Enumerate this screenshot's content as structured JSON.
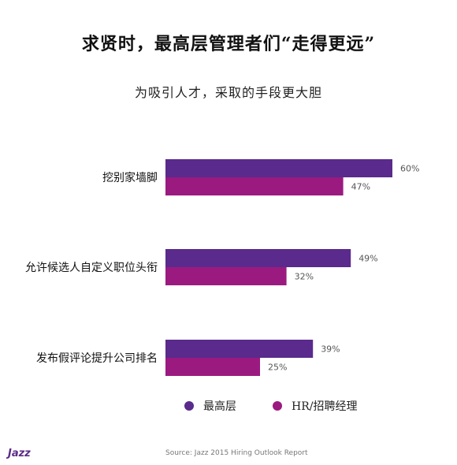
{
  "colors": {
    "series1": "#5a2a8c",
    "series2": "#9b1a80"
  },
  "logo_text": "Jazz",
  "source": "Source: Jazz 2015 Hiring Outlook Report",
  "chart_data": {
    "type": "bar",
    "orientation": "horizontal",
    "title": "求贤时，最高层管理者们“走得更远”",
    "subtitle": "为吸引人才，采取的手段更大胆",
    "categories": [
      "挖别家墙脚",
      "允许候选人自定义职位头衔",
      "发布假评论提升公司排名"
    ],
    "series": [
      {
        "name": "最高层",
        "values": [
          60,
          49,
          39
        ]
      },
      {
        "name": "HR/招聘经理",
        "values": [
          47,
          32,
          25
        ]
      }
    ],
    "value_labels": [
      [
        "60%",
        "49%",
        "39%"
      ],
      [
        "47%",
        "32%",
        "25%"
      ]
    ],
    "xlim": [
      0,
      60
    ],
    "grid": false,
    "legend_position": "bottom"
  }
}
